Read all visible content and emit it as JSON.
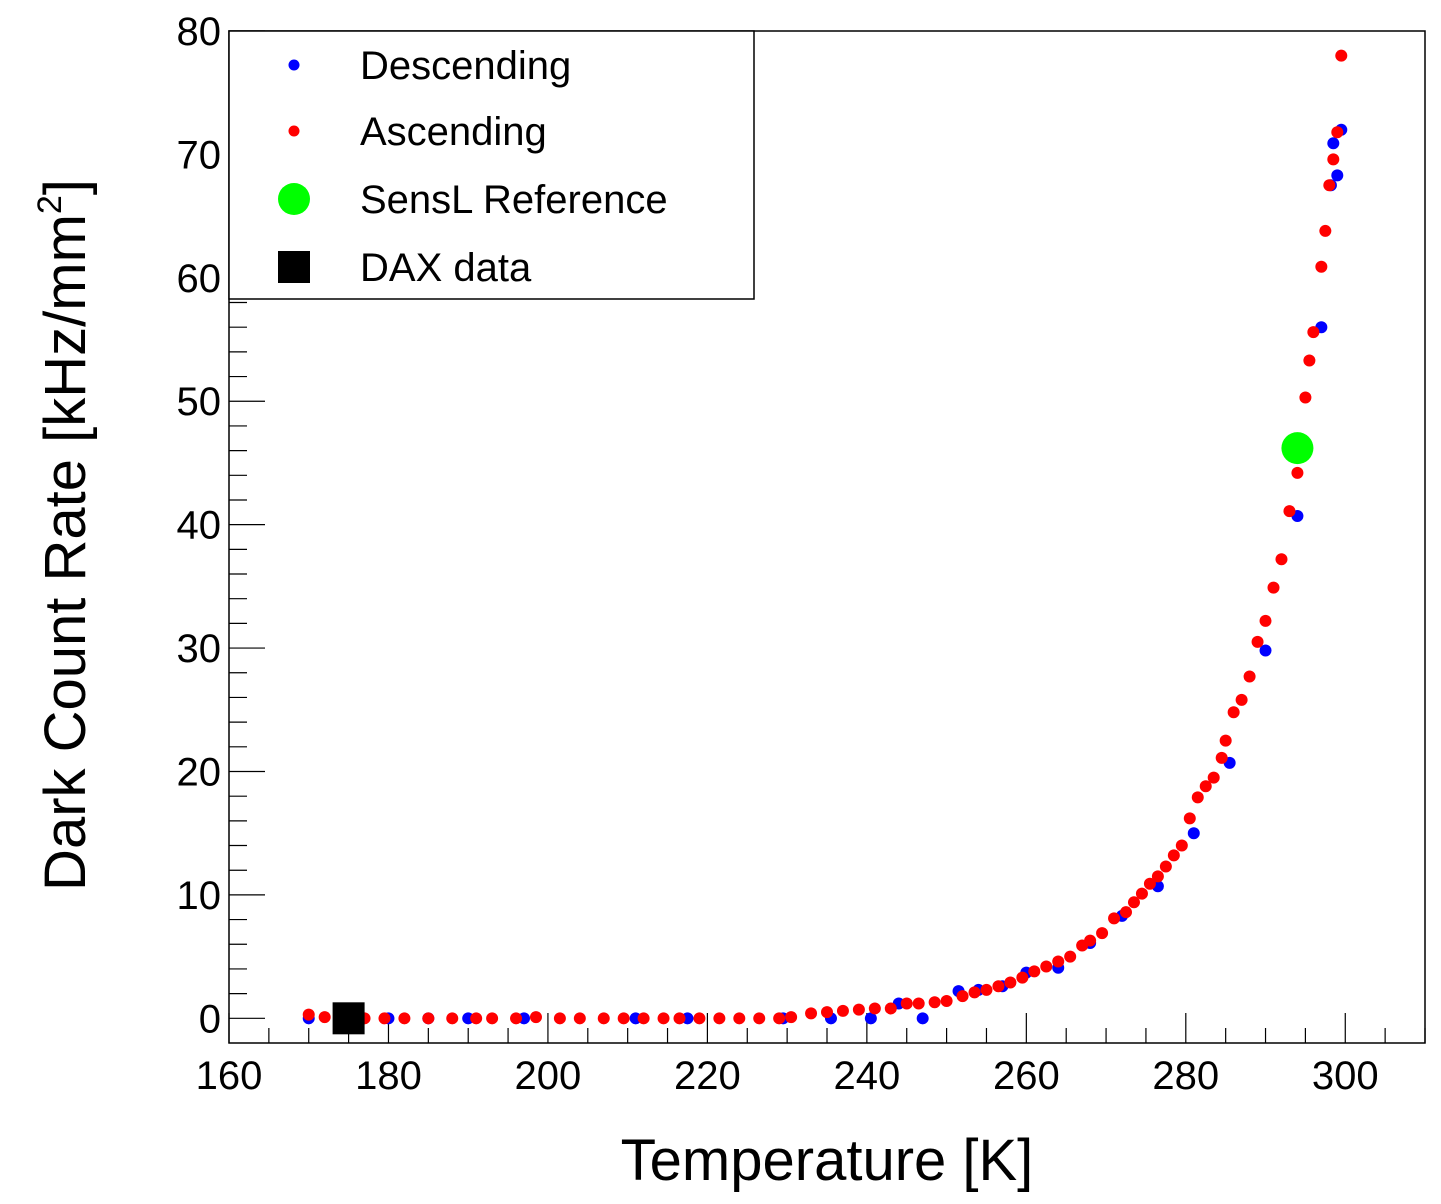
{
  "chart_data": {
    "type": "scatter",
    "xlabel": "Temperature [K]",
    "ylabel": "Dark Count Rate [kHz/mm",
    "ylabel_sup": "2",
    "ylabel_close": "]",
    "xlim": [
      160,
      310
    ],
    "ylim": [
      -2,
      80
    ],
    "x_ticks": [
      "160",
      "180",
      "200",
      "220",
      "240",
      "260",
      "280",
      "300"
    ],
    "x_tick_values": [
      160,
      180,
      200,
      220,
      240,
      260,
      280,
      300
    ],
    "y_ticks": [
      "0",
      "10",
      "20",
      "30",
      "40",
      "50",
      "60",
      "70",
      "80"
    ],
    "y_tick_values": [
      0,
      10,
      20,
      30,
      40,
      50,
      60,
      70,
      80
    ],
    "legend": [
      {
        "label": "Descending",
        "color": "#0000ff",
        "marker": "dot"
      },
      {
        "label": "Ascending",
        "color": "#ff0000",
        "marker": "dot"
      },
      {
        "label": "SensL Reference",
        "color": "#00ff00",
        "marker": "big-circle"
      },
      {
        "label": "DAX data",
        "color": "#000000",
        "marker": "square"
      }
    ],
    "series": [
      {
        "name": "Descending",
        "color": "#0000ff",
        "x": [
          170,
          175,
          180,
          185,
          190,
          197,
          211,
          217.5,
          229.5,
          235.5,
          240.5,
          244,
          247,
          251.5,
          254,
          257,
          260,
          264,
          268,
          272,
          276.5,
          281,
          285.5,
          290,
          294,
          297,
          298.2,
          298.5,
          299,
          299.5
        ],
        "y": [
          0,
          0,
          0,
          0,
          0,
          0,
          0,
          0,
          0,
          0,
          0,
          1.2,
          0,
          2.2,
          2.3,
          2.6,
          3.7,
          4.1,
          6.1,
          8.3,
          10.7,
          15,
          20.7,
          29.8,
          40.7,
          56,
          67.5,
          70.9,
          68.3,
          72
        ]
      },
      {
        "name": "Ascending",
        "color": "#ff0000",
        "x": [
          170,
          172,
          177,
          179.5,
          182,
          185,
          188,
          191,
          193,
          196,
          198.5,
          201.5,
          204,
          207,
          209.5,
          212,
          214.5,
          216.5,
          219,
          221.5,
          224,
          226.5,
          229,
          230.5,
          233,
          235,
          237,
          239,
          241,
          243,
          245,
          246.5,
          248.5,
          250,
          252,
          253.5,
          255,
          256.5,
          258,
          259.5,
          261,
          262.5,
          264,
          265.5,
          267,
          268,
          269.5,
          271,
          272.5,
          273.5,
          274.5,
          275.5,
          276.5,
          277.5,
          278.5,
          279.5,
          280.5,
          281.5,
          282.5,
          283.5,
          284.5,
          285,
          286,
          287,
          288,
          289,
          290,
          291,
          292,
          293,
          294,
          295,
          295.5,
          296,
          297,
          297.5,
          298,
          298.5,
          299,
          299.5
        ],
        "y": [
          0.3,
          0.1,
          0,
          0,
          0,
          0,
          0,
          0,
          0,
          0,
          0.1,
          0,
          0,
          0,
          0,
          0,
          0,
          0,
          0,
          0,
          0,
          0,
          0,
          0.1,
          0.4,
          0.5,
          0.6,
          0.7,
          0.8,
          0.8,
          1.2,
          1.2,
          1.3,
          1.4,
          1.8,
          2.1,
          2.3,
          2.6,
          2.9,
          3.3,
          3.8,
          4.2,
          4.6,
          5.0,
          5.9,
          6.3,
          6.9,
          8.1,
          8.6,
          9.4,
          10.1,
          10.9,
          11.5,
          12.3,
          13.2,
          14.0,
          16.2,
          17.9,
          18.8,
          19.5,
          21.1,
          22.5,
          24.8,
          25.8,
          27.7,
          30.5,
          32.2,
          34.9,
          37.2,
          41.1,
          44.2,
          50.3,
          53.3,
          55.6,
          60.9,
          63.8,
          67.5,
          69.6,
          71.8,
          78
        ]
      }
    ],
    "reference_points": [
      {
        "name": "SensL Reference",
        "x": 294,
        "y": 46.2,
        "color": "#00ff00"
      },
      {
        "name": "DAX data",
        "x": 175,
        "y": 0,
        "color": "#000000"
      }
    ]
  }
}
